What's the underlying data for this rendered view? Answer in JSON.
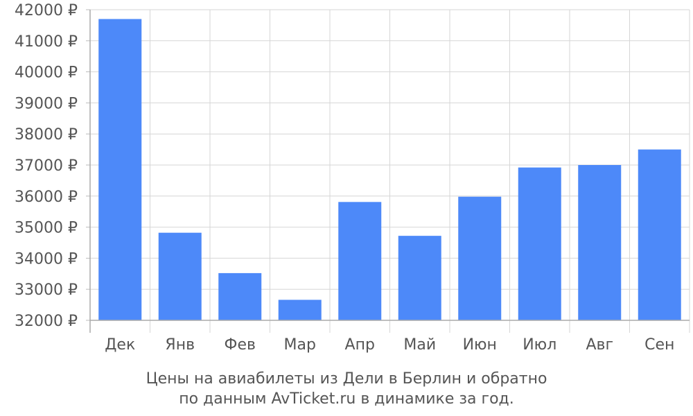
{
  "chart_data": {
    "type": "bar",
    "categories": [
      "Дек",
      "Янв",
      "Фев",
      "Мар",
      "Апр",
      "Май",
      "Июн",
      "Июл",
      "Авг",
      "Сен"
    ],
    "values": [
      41700,
      34820,
      33520,
      32660,
      35810,
      34720,
      35980,
      36920,
      37000,
      37500
    ],
    "ylim": [
      32000,
      42000
    ],
    "yticks": [
      32000,
      33000,
      34000,
      35000,
      36000,
      37000,
      38000,
      39000,
      40000,
      41000,
      42000
    ],
    "ytick_suffix": " ₽",
    "bar_color": "#4d89f9",
    "grid": true,
    "caption": {
      "line1": "Цены на авиабилеты из Дели в Берлин и обратно",
      "line2": "по данным AvTicket.ru в динамике за год."
    }
  }
}
